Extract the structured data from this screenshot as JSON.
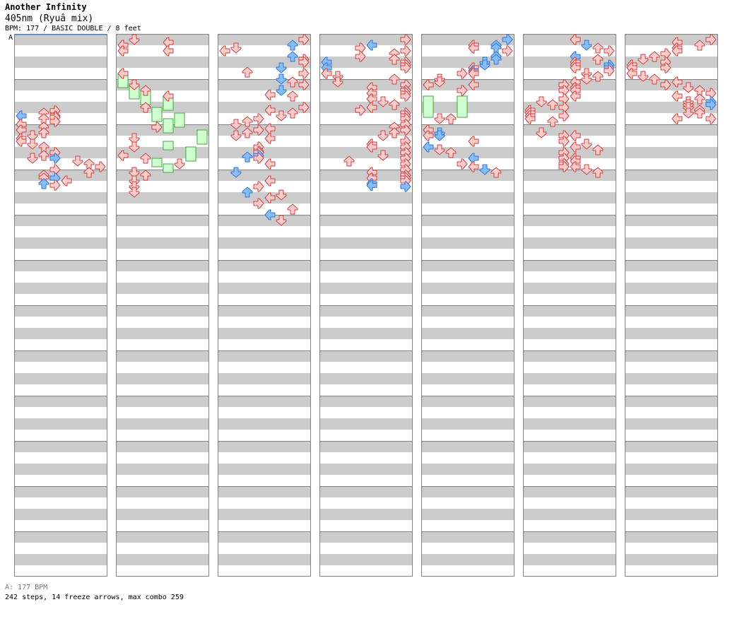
{
  "header": {
    "title": "Another Infinity",
    "subtitle": "405nm (Ryuâ  mix)",
    "meta": "BPM: 177 / BASIC DOUBLE / 8 feet"
  },
  "section_marker": "A",
  "footer": {
    "bpm_line": "A: 177 BPM",
    "summary": "242 steps, 14 freeze arrows, max combo 259"
  },
  "colors": {
    "stripe": "#cccccc",
    "border": "#808080",
    "arrow_quarter_fill": "#ffcccc",
    "arrow_quarter_stroke": "#cc4444",
    "arrow_eighth_fill": "#88bbff",
    "arrow_eighth_stroke": "#3377cc",
    "freeze_fill": "#cfffcf",
    "freeze_stroke": "#44aa44"
  },
  "chart_data": {
    "type": "step-chart",
    "columns": 7,
    "measures_per_column": 12,
    "lanes": [
      "L",
      "D",
      "U",
      "R",
      "L",
      "D",
      "U",
      "R"
    ],
    "notes": [
      [
        1,
        6.3,
        3,
        0
      ],
      [
        1,
        6.5,
        2,
        0
      ],
      [
        1,
        6.75,
        3,
        0
      ],
      [
        1,
        6.75,
        0,
        1
      ],
      [
        1,
        6.88,
        3,
        0
      ],
      [
        1,
        7.0,
        2,
        0
      ],
      [
        1,
        7.25,
        3,
        0
      ],
      [
        1,
        7.5,
        0,
        0
      ],
      [
        1,
        7.75,
        2,
        0
      ],
      [
        1,
        8.0,
        0,
        0
      ],
      [
        1,
        8.25,
        2,
        0
      ],
      [
        1,
        8.5,
        1,
        0
      ],
      [
        1,
        8.75,
        0,
        0
      ],
      [
        1,
        9.0,
        0,
        0
      ],
      [
        1,
        9.25,
        1,
        0
      ],
      [
        1,
        9.5,
        2,
        0
      ],
      [
        1,
        10.0,
        3,
        0
      ],
      [
        1,
        10.25,
        2,
        0
      ],
      [
        1,
        10.5,
        1,
        0
      ],
      [
        1,
        10.5,
        3,
        1
      ],
      [
        1,
        10.75,
        5,
        0
      ],
      [
        1,
        11.0,
        6,
        0
      ],
      [
        1,
        11.25,
        7,
        0
      ],
      [
        1,
        11.5,
        3,
        0
      ],
      [
        1,
        11.75,
        6,
        0
      ],
      [
        1,
        12.0,
        2,
        0
      ],
      [
        1,
        12.25,
        2,
        0
      ],
      [
        1,
        12.25,
        3,
        1
      ],
      [
        1,
        12.5,
        4,
        0
      ],
      [
        1,
        12.75,
        2,
        1
      ],
      [
        1,
        12.88,
        3,
        0
      ],
      [
        2,
        0.0,
        1,
        0
      ],
      [
        2,
        0.25,
        4,
        0
      ],
      [
        2,
        0.5,
        0,
        0
      ],
      [
        2,
        1.0,
        0,
        0
      ],
      [
        2,
        1.0,
        4,
        0
      ],
      [
        2,
        3.0,
        0,
        0
      ],
      [
        2,
        4.0,
        1,
        0
      ],
      [
        2,
        4.5,
        2,
        0
      ],
      [
        2,
        5.0,
        4,
        0
      ],
      [
        2,
        6.0,
        2,
        0
      ],
      [
        2,
        7.75,
        3,
        0
      ],
      [
        2,
        8.75,
        1,
        0
      ],
      [
        2,
        9.5,
        1,
        0
      ],
      [
        2,
        10.25,
        0,
        0
      ],
      [
        2,
        10.5,
        2,
        0
      ],
      [
        2,
        11.0,
        5,
        0
      ],
      [
        2,
        11.75,
        1,
        0
      ],
      [
        2,
        12.0,
        2,
        0
      ],
      [
        2,
        12.5,
        1,
        0
      ],
      [
        2,
        13.0,
        1,
        0
      ],
      [
        2,
        13.5,
        1,
        0
      ],
      [
        3,
        0.0,
        7,
        0
      ],
      [
        3,
        0.5,
        6,
        1
      ],
      [
        3,
        0.75,
        1,
        0
      ],
      [
        3,
        1.0,
        0,
        0
      ],
      [
        3,
        1.5,
        6,
        1
      ],
      [
        3,
        1.75,
        7,
        0
      ],
      [
        3,
        2.0,
        7,
        0
      ],
      [
        3,
        2.5,
        5,
        1
      ],
      [
        3,
        2.88,
        2,
        0
      ],
      [
        3,
        3.0,
        7,
        0
      ],
      [
        3,
        3.5,
        5,
        1
      ],
      [
        3,
        3.75,
        6,
        0
      ],
      [
        3,
        4.0,
        7,
        0
      ],
      [
        3,
        4.5,
        5,
        1
      ],
      [
        3,
        4.88,
        4,
        0
      ],
      [
        3,
        5.0,
        6,
        0
      ],
      [
        3,
        6.0,
        7,
        0
      ],
      [
        3,
        6.25,
        4,
        0
      ],
      [
        3,
        6.5,
        6,
        0
      ],
      [
        3,
        6.75,
        5,
        0
      ],
      [
        3,
        7.0,
        3,
        0
      ],
      [
        3,
        7.25,
        2,
        0
      ],
      [
        3,
        7.5,
        1,
        0
      ],
      [
        3,
        7.88,
        4,
        0
      ],
      [
        3,
        8.0,
        3,
        0
      ],
      [
        3,
        8.25,
        2,
        0
      ],
      [
        3,
        8.5,
        1,
        0
      ],
      [
        3,
        8.75,
        4,
        0
      ],
      [
        3,
        9.5,
        3,
        0
      ],
      [
        3,
        9.88,
        3,
        0
      ],
      [
        3,
        10.0,
        3,
        0
      ],
      [
        3,
        10.25,
        3,
        1
      ],
      [
        3,
        10.38,
        2,
        1
      ],
      [
        3,
        10.5,
        3,
        0
      ],
      [
        3,
        11.0,
        4,
        0
      ],
      [
        3,
        11.75,
        1,
        1
      ],
      [
        3,
        12.5,
        4,
        0
      ],
      [
        3,
        13.0,
        3,
        0
      ],
      [
        3,
        13.5,
        2,
        1
      ],
      [
        3,
        13.75,
        5,
        0
      ],
      [
        3,
        14.0,
        4,
        0
      ],
      [
        3,
        14.5,
        3,
        0
      ],
      [
        3,
        15.0,
        6,
        0
      ],
      [
        3,
        15.5,
        4,
        1
      ],
      [
        3,
        16.0,
        5,
        0
      ],
      [
        4,
        0.0,
        7,
        0
      ],
      [
        4,
        0.5,
        4,
        1
      ],
      [
        4,
        0.75,
        3,
        0
      ],
      [
        4,
        1.0,
        7,
        0
      ],
      [
        4,
        1.25,
        6,
        0
      ],
      [
        4,
        1.5,
        3,
        0
      ],
      [
        4,
        1.75,
        6,
        0
      ],
      [
        4,
        2.0,
        0,
        1
      ],
      [
        4,
        2.0,
        7,
        0
      ],
      [
        4,
        2.25,
        7,
        0
      ],
      [
        4,
        2.5,
        0,
        1
      ],
      [
        4,
        2.5,
        7,
        0
      ],
      [
        4,
        3.0,
        0,
        0
      ],
      [
        4,
        3.25,
        1,
        0
      ],
      [
        4,
        3.5,
        6,
        0
      ],
      [
        4,
        3.75,
        1,
        0
      ],
      [
        4,
        4.0,
        7,
        0
      ],
      [
        4,
        4.25,
        4,
        0
      ],
      [
        4,
        4.5,
        7,
        0
      ],
      [
        4,
        4.75,
        7,
        0
      ],
      [
        4,
        4.75,
        4,
        0
      ],
      [
        4,
        5.0,
        7,
        0
      ],
      [
        4,
        5.25,
        4,
        0
      ],
      [
        4,
        5.5,
        5,
        0
      ],
      [
        4,
        5.75,
        6,
        0
      ],
      [
        4,
        6.0,
        4,
        0
      ],
      [
        4,
        6.25,
        3,
        0
      ],
      [
        4,
        6.5,
        7,
        0
      ],
      [
        4,
        6.75,
        7,
        0
      ],
      [
        4,
        7.0,
        7,
        0
      ],
      [
        4,
        7.5,
        7,
        0
      ],
      [
        4,
        7.75,
        6,
        0
      ],
      [
        4,
        8.0,
        7,
        0
      ],
      [
        4,
        8.25,
        6,
        0
      ],
      [
        4,
        8.5,
        5,
        0
      ],
      [
        4,
        9.0,
        7,
        0
      ],
      [
        4,
        9.25,
        4,
        0
      ],
      [
        4,
        9.5,
        7,
        0
      ],
      [
        4,
        9.5,
        4,
        0
      ],
      [
        4,
        10.0,
        7,
        0
      ],
      [
        4,
        10.25,
        5,
        0
      ],
      [
        4,
        10.5,
        7,
        0
      ],
      [
        4,
        10.75,
        2,
        0
      ],
      [
        4,
        11.0,
        7,
        0
      ],
      [
        4,
        11.5,
        7,
        0
      ],
      [
        4,
        11.75,
        4,
        0
      ],
      [
        4,
        12.0,
        7,
        0
      ],
      [
        4,
        12.25,
        7,
        0
      ],
      [
        4,
        12.25,
        4,
        0
      ],
      [
        4,
        12.5,
        7,
        0
      ],
      [
        4,
        12.75,
        4,
        1
      ],
      [
        4,
        12.9,
        4,
        1
      ],
      [
        4,
        13.0,
        7,
        1
      ],
      [
        5,
        0.0,
        7,
        1
      ],
      [
        5,
        0.5,
        4,
        0
      ],
      [
        5,
        0.5,
        6,
        1
      ],
      [
        5,
        0.75,
        4,
        0
      ],
      [
        5,
        0.75,
        6,
        1
      ],
      [
        5,
        1.0,
        7,
        0
      ],
      [
        5,
        1.5,
        6,
        1
      ],
      [
        5,
        1.75,
        6,
        1
      ],
      [
        5,
        2.0,
        5,
        1
      ],
      [
        5,
        2.25,
        5,
        1
      ],
      [
        5,
        2.5,
        4,
        1
      ],
      [
        5,
        2.5,
        4,
        0
      ],
      [
        5,
        2.75,
        4,
        1
      ],
      [
        5,
        2.88,
        4,
        0
      ],
      [
        5,
        3.0,
        3,
        0
      ],
      [
        5,
        3.0,
        4,
        0
      ],
      [
        5,
        3.5,
        1,
        0
      ],
      [
        5,
        3.75,
        1,
        0
      ],
      [
        5,
        4.0,
        0,
        0
      ],
      [
        5,
        4.0,
        4,
        0
      ],
      [
        5,
        4.5,
        3,
        0
      ],
      [
        5,
        7.0,
        1,
        0
      ],
      [
        5,
        7.0,
        2,
        0
      ],
      [
        5,
        8.0,
        0,
        0
      ],
      [
        5,
        8.25,
        1,
        1
      ],
      [
        5,
        8.5,
        0,
        0
      ],
      [
        5,
        8.5,
        1,
        1
      ],
      [
        5,
        9.0,
        4,
        0
      ],
      [
        5,
        9.5,
        0,
        1
      ],
      [
        5,
        9.75,
        1,
        0
      ],
      [
        5,
        10.0,
        2,
        0
      ],
      [
        5,
        10.5,
        4,
        1
      ],
      [
        5,
        11.0,
        3,
        0
      ],
      [
        5,
        11.25,
        4,
        0
      ],
      [
        5,
        11.5,
        5,
        1
      ],
      [
        5,
        11.75,
        6,
        0
      ],
      [
        6,
        0.0,
        4,
        0
      ],
      [
        6,
        0.5,
        5,
        1
      ],
      [
        6,
        0.75,
        6,
        0
      ],
      [
        6,
        1.0,
        7,
        0
      ],
      [
        6,
        1.5,
        4,
        1
      ],
      [
        6,
        1.75,
        6,
        0
      ],
      [
        6,
        2.0,
        4,
        0
      ],
      [
        6,
        2.25,
        4,
        0
      ],
      [
        6,
        2.25,
        7,
        1
      ],
      [
        6,
        2.5,
        4,
        0
      ],
      [
        6,
        2.5,
        7,
        1
      ],
      [
        6,
        2.75,
        7,
        0
      ],
      [
        6,
        3.0,
        5,
        0
      ],
      [
        6,
        3.25,
        6,
        0
      ],
      [
        6,
        3.5,
        5,
        0
      ],
      [
        6,
        3.75,
        4,
        0
      ],
      [
        6,
        4.0,
        3,
        0
      ],
      [
        6,
        4.25,
        4,
        0
      ],
      [
        6,
        4.5,
        3,
        0
      ],
      [
        6,
        4.5,
        4,
        0
      ],
      [
        6,
        5.0,
        4,
        0
      ],
      [
        6,
        5.25,
        3,
        0
      ],
      [
        6,
        5.5,
        1,
        0
      ],
      [
        6,
        5.75,
        2,
        0
      ],
      [
        6,
        6.0,
        3,
        0
      ],
      [
        6,
        6.25,
        0,
        0
      ],
      [
        6,
        6.5,
        0,
        0
      ],
      [
        6,
        6.75,
        0,
        0
      ],
      [
        6,
        6.75,
        3,
        0
      ],
      [
        6,
        7.0,
        0,
        0
      ],
      [
        6,
        7.25,
        2,
        0
      ],
      [
        6,
        8.25,
        1,
        0
      ],
      [
        6,
        8.5,
        4,
        0
      ],
      [
        6,
        8.5,
        3,
        0
      ],
      [
        6,
        9.0,
        3,
        0
      ],
      [
        6,
        9.25,
        5,
        0
      ],
      [
        6,
        9.5,
        4,
        0
      ],
      [
        6,
        9.75,
        6,
        0
      ],
      [
        6,
        10.0,
        3,
        0
      ],
      [
        6,
        10.5,
        3,
        0
      ],
      [
        6,
        10.5,
        4,
        0
      ],
      [
        6,
        10.75,
        4,
        0
      ],
      [
        6,
        11.0,
        3,
        0
      ],
      [
        6,
        11.25,
        3,
        0
      ],
      [
        6,
        11.25,
        4,
        0
      ],
      [
        6,
        11.5,
        5,
        0
      ],
      [
        6,
        11.75,
        6,
        0
      ],
      [
        7,
        0.0,
        7,
        0
      ],
      [
        7,
        0.25,
        4,
        0
      ],
      [
        7,
        0.5,
        6,
        0
      ],
      [
        7,
        0.75,
        4,
        0
      ],
      [
        7,
        1.0,
        4,
        0
      ],
      [
        7,
        1.25,
        3,
        0
      ],
      [
        7,
        1.5,
        2,
        0
      ],
      [
        7,
        1.75,
        1,
        0
      ],
      [
        7,
        2.25,
        0,
        0
      ],
      [
        7,
        2.5,
        0,
        0
      ],
      [
        7,
        2.0,
        3,
        0
      ],
      [
        7,
        2.5,
        3,
        0
      ],
      [
        7,
        3.0,
        0,
        0
      ],
      [
        7,
        3.25,
        1,
        0
      ],
      [
        7,
        3.5,
        2,
        0
      ],
      [
        7,
        3.75,
        4,
        0
      ],
      [
        7,
        4.0,
        3,
        0
      ],
      [
        7,
        4.25,
        5,
        0
      ],
      [
        7,
        4.5,
        6,
        0
      ],
      [
        7,
        4.75,
        7,
        0
      ],
      [
        7,
        5.0,
        4,
        0
      ],
      [
        7,
        5.25,
        6,
        0
      ],
      [
        7,
        5.5,
        5,
        0
      ],
      [
        7,
        5.5,
        7,
        1
      ],
      [
        7,
        5.75,
        5,
        0
      ],
      [
        7,
        5.75,
        7,
        1
      ],
      [
        7,
        6.0,
        5,
        0
      ],
      [
        7,
        6.25,
        6,
        0
      ],
      [
        7,
        6.5,
        5,
        0
      ],
      [
        7,
        6.5,
        6,
        0
      ],
      [
        7,
        7.0,
        4,
        0
      ],
      [
        7,
        7.0,
        7,
        0
      ]
    ],
    "freezes": [
      [
        2,
        3.0,
        4.25,
        0
      ],
      [
        2,
        4.0,
        5.25,
        1
      ],
      [
        2,
        4.5,
        5.75,
        2
      ],
      [
        2,
        5.0,
        6.25,
        4
      ],
      [
        2,
        6.0,
        7.25,
        3
      ],
      [
        2,
        6.5,
        7.75,
        5
      ],
      [
        2,
        7.0,
        8.25,
        4
      ],
      [
        2,
        8.0,
        9.25,
        7
      ],
      [
        2,
        9.0,
        9.75,
        4
      ],
      [
        2,
        9.5,
        10.75,
        6
      ],
      [
        2,
        10.5,
        11.25,
        3
      ],
      [
        2,
        11.0,
        11.75,
        4
      ],
      [
        5,
        5.0,
        6.88,
        0
      ],
      [
        5,
        5.0,
        6.88,
        3
      ]
    ]
  }
}
